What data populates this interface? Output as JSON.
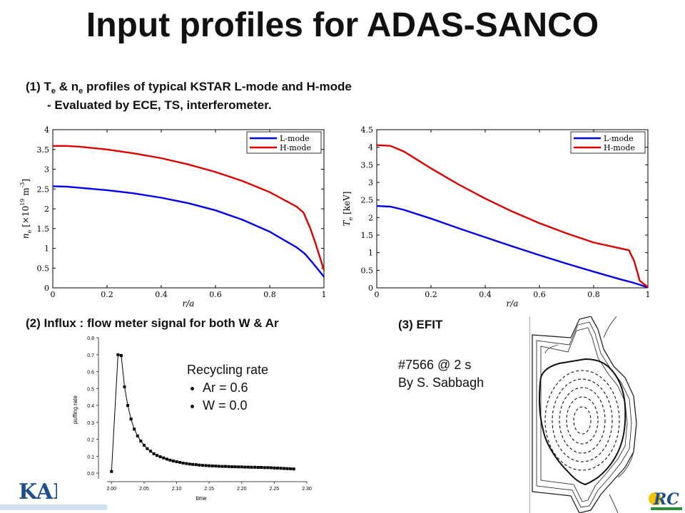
{
  "title": "Input profiles for ADAS-SANCO",
  "section1": {
    "prefix": "(1) T",
    "te_sub": "e",
    "mid": " & n",
    "ne_sub": "e",
    "suffix": " profiles of typical KSTAR L-mode and H-mode",
    "line2": "- Evaluated by ECE, TS, interferometer."
  },
  "section2": {
    "heading": "(2) Influx : flow meter signal for both W & Ar"
  },
  "section3": {
    "heading": "(3) EFIT",
    "shot": "#7566 @ 2 s",
    "author": "By S. Sabbagh"
  },
  "recycling": {
    "title": "Recycling rate",
    "items": [
      "Ar = 0.6",
      "W = 0.0"
    ]
  },
  "logos": {
    "left": "KAI",
    "right": "RC"
  },
  "colors": {
    "l_mode": "#0000ee",
    "h_mode": "#dd0000"
  },
  "chart_data": [
    {
      "type": "line",
      "title": "",
      "xlabel": "r/a",
      "ylabel": "n_e [×10^19 m^-3]",
      "xlim": [
        0,
        1
      ],
      "ylim": [
        0,
        4
      ],
      "xticks": [
        "0",
        "0.2",
        "0.4",
        "0.6",
        "0.8",
        "1"
      ],
      "yticks": [
        "0",
        "0.5",
        "1",
        "1.5",
        "2",
        "2.5",
        "3",
        "3.5",
        "4"
      ],
      "legend": "top-right",
      "series": [
        {
          "name": "L-mode",
          "x": [
            0,
            0.05,
            0.1,
            0.2,
            0.3,
            0.4,
            0.5,
            0.6,
            0.7,
            0.8,
            0.9,
            0.93,
            0.96,
            1.0
          ],
          "y": [
            2.57,
            2.56,
            2.53,
            2.47,
            2.39,
            2.28,
            2.14,
            1.96,
            1.72,
            1.42,
            1.02,
            0.86,
            0.62,
            0.28
          ]
        },
        {
          "name": "H-mode",
          "x": [
            0,
            0.05,
            0.1,
            0.2,
            0.3,
            0.4,
            0.5,
            0.6,
            0.7,
            0.8,
            0.9,
            0.925,
            0.95,
            0.97,
            1.0
          ],
          "y": [
            3.59,
            3.59,
            3.57,
            3.5,
            3.4,
            3.28,
            3.12,
            2.93,
            2.7,
            2.42,
            2.05,
            1.9,
            1.5,
            1.1,
            0.45
          ]
        }
      ]
    },
    {
      "type": "line",
      "title": "",
      "xlabel": "r/a",
      "ylabel": "T_e [keV]",
      "xlim": [
        0,
        1
      ],
      "ylim": [
        0,
        4.5
      ],
      "xticks": [
        "0",
        "0.2",
        "0.4",
        "0.6",
        "0.8",
        "1"
      ],
      "yticks": [
        "0",
        "0.5",
        "1",
        "1.5",
        "2",
        "2.5",
        "3",
        "3.5",
        "4",
        "4.5"
      ],
      "legend": "top-right",
      "series": [
        {
          "name": "L-mode",
          "x": [
            0,
            0.05,
            0.1,
            0.2,
            0.3,
            0.4,
            0.5,
            0.6,
            0.7,
            0.8,
            0.9,
            0.94,
            0.97,
            1.0
          ],
          "y": [
            2.33,
            2.31,
            2.22,
            1.97,
            1.7,
            1.44,
            1.18,
            0.93,
            0.69,
            0.46,
            0.24,
            0.16,
            0.09,
            0.01
          ]
        },
        {
          "name": "H-mode",
          "x": [
            0,
            0.05,
            0.1,
            0.2,
            0.3,
            0.4,
            0.5,
            0.6,
            0.7,
            0.8,
            0.9,
            0.93,
            0.95,
            0.97,
            1.0
          ],
          "y": [
            4.06,
            4.04,
            3.88,
            3.4,
            2.95,
            2.54,
            2.17,
            1.84,
            1.55,
            1.29,
            1.12,
            1.07,
            0.75,
            0.2,
            0.02
          ]
        }
      ]
    },
    {
      "type": "line",
      "title": "",
      "xlabel": "time",
      "ylabel": "puffing rate",
      "xlim": [
        1.98,
        2.3
      ],
      "ylim": [
        -0.05,
        0.8
      ],
      "xticks": [
        "2.00",
        "2.05",
        "2.10",
        "2.15",
        "2.20",
        "2.25",
        "2.30"
      ],
      "yticks": [
        "0.0",
        "0.1",
        "0.2",
        "0.3",
        "0.4",
        "0.5",
        "0.6",
        "0.7",
        "0.8"
      ],
      "series": [
        {
          "name": "",
          "x": [
            2.0,
            2.01,
            2.015,
            2.02,
            2.025,
            2.03,
            2.035,
            2.04,
            2.045,
            2.05,
            2.055,
            2.06,
            2.065,
            2.07,
            2.075,
            2.08,
            2.085,
            2.09,
            2.095,
            2.1,
            2.105,
            2.11,
            2.115,
            2.12,
            2.125,
            2.13,
            2.135,
            2.14,
            2.145,
            2.15,
            2.155,
            2.16,
            2.165,
            2.17,
            2.175,
            2.18,
            2.185,
            2.19,
            2.195,
            2.2,
            2.205,
            2.21,
            2.215,
            2.22,
            2.225,
            2.23,
            2.235,
            2.24,
            2.245,
            2.25,
            2.255,
            2.26,
            2.265,
            2.27,
            2.275,
            2.28
          ],
          "y": [
            0.01,
            0.7,
            0.695,
            0.51,
            0.4,
            0.32,
            0.26,
            0.22,
            0.19,
            0.165,
            0.145,
            0.13,
            0.115,
            0.105,
            0.097,
            0.09,
            0.083,
            0.077,
            0.072,
            0.068,
            0.064,
            0.06,
            0.057,
            0.054,
            0.052,
            0.05,
            0.048,
            0.046,
            0.045,
            0.044,
            0.043,
            0.042,
            0.041,
            0.04,
            0.04,
            0.039,
            0.038,
            0.038,
            0.037,
            0.037,
            0.036,
            0.036,
            0.035,
            0.035,
            0.034,
            0.034,
            0.033,
            0.033,
            0.032,
            0.031,
            0.03,
            0.029,
            0.028,
            0.027,
            0.026,
            0.025
          ]
        }
      ]
    }
  ]
}
